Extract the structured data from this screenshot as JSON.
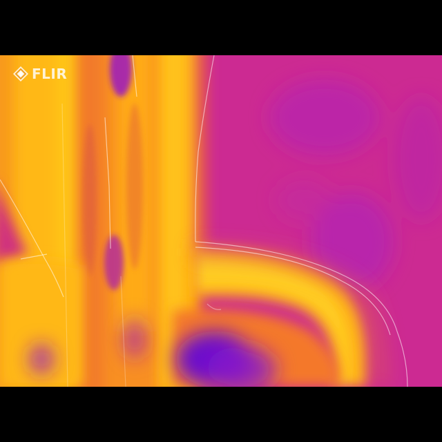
{
  "camera_logo": {
    "brand": "FLIR",
    "icon": "flir-diamond-logo-icon"
  },
  "thermal_image": {
    "palette": "iron",
    "colors": {
      "cold": "#6a10cc",
      "cool": "#a219c0",
      "mid": "#d02a8a",
      "warm": "#f86a2a",
      "hot": "#ffb000",
      "hottest": "#ffd020"
    }
  }
}
